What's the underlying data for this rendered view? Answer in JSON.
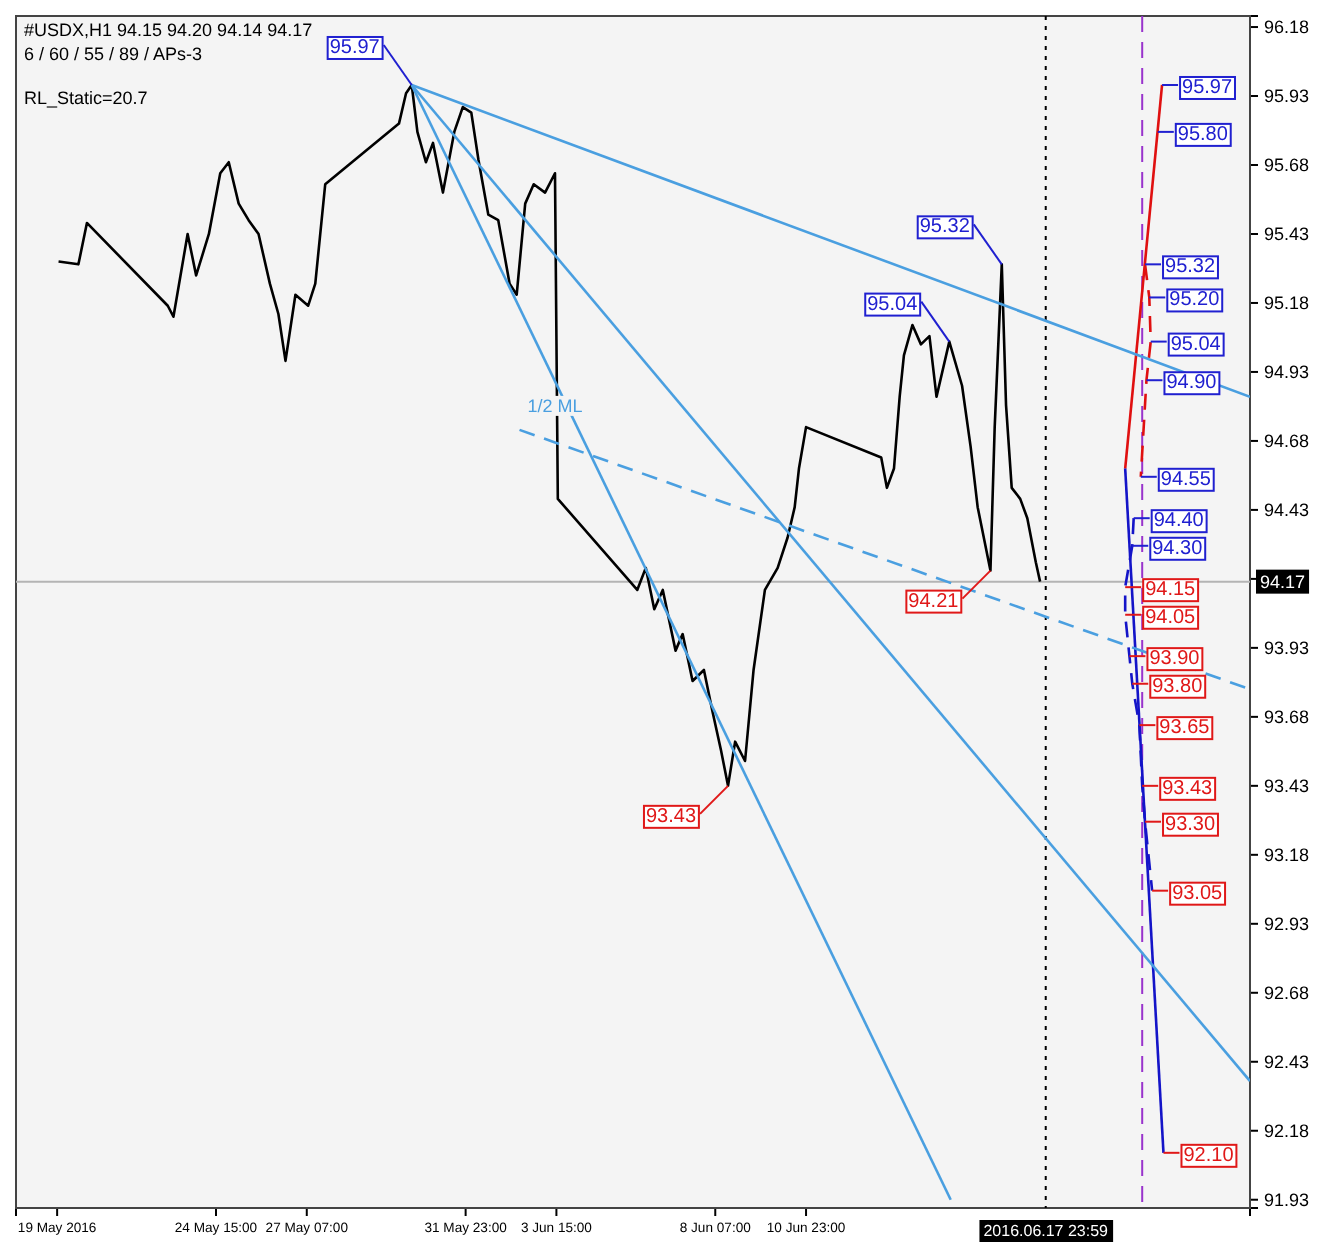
{
  "chart_data": {
    "type": "line",
    "title": "#USDX,H1  94.15 94.20 94.14 94.17",
    "subtitle": "6 / 60 / 55 / 89 / APs-3",
    "xlim": [
      "2016-05-18T18:00",
      "2016-06-24T00:00"
    ],
    "ylim": [
      91.9,
      96.22
    ],
    "xticks": [
      {
        "value": "2016-05-19T23:00",
        "label": "19 May 2016"
      },
      {
        "value": "2016-05-24T15:00",
        "label": "24 May 15:00"
      },
      {
        "value": "2016-05-27T07:00",
        "label": "27 May 07:00"
      },
      {
        "value": "2016-05-31T23:00",
        "label": "31 May 23:00"
      },
      {
        "value": "2016-06-03T15:00",
        "label": "3 Jun 15:00"
      },
      {
        "value": "2016-06-08T07:00",
        "label": "8 Jun 07:00"
      },
      {
        "value": "2016-06-10T23:00",
        "label": "10 Jun 23:00"
      }
    ],
    "yticks": [
      91.93,
      92.18,
      92.43,
      92.68,
      92.93,
      93.18,
      93.43,
      93.68,
      93.93,
      {
        "value": 94.18,
        "label": null
      },
      94.43,
      94.68,
      94.93,
      95.18,
      95.43,
      95.68,
      95.93,
      96.18
    ],
    "series": [
      {
        "color": "#000000",
        "x": [
          "2016-05-20T00:00",
          "2016-05-20T14:00",
          "2016-05-20T20:00",
          "2016-05-23T05:00",
          "2016-05-23T09:00",
          "2016-05-23T19:00",
          "2016-05-24T01:00",
          "2016-05-24T10:00",
          "2016-05-24T18:00",
          "2016-05-25T00:00",
          "2016-05-25T07:00",
          "2016-05-25T14:00",
          "2016-05-25T21:00",
          "2016-05-26T05:00",
          "2016-05-26T11:00",
          "2016-05-26T16:00",
          "2016-05-26T23:00",
          "2016-05-27T08:00",
          "2016-05-27T13:00",
          "2016-05-27T20:00",
          "2016-05-30T00:00",
          "2016-05-30T05:00",
          "2016-05-30T09:00",
          "2016-05-30T13:00",
          "2016-05-30T19:00",
          "2016-05-31T00:00",
          "2016-05-31T07:00",
          "2016-05-31T15:00",
          "2016-05-31T21:00",
          "2016-06-01T03:00",
          "2016-06-01T08:00",
          "2016-06-01T15:00",
          "2016-06-01T22:00",
          "2016-06-02T06:00",
          "2016-06-02T11:00",
          "2016-06-02T17:00",
          "2016-06-02T23:00",
          "2016-06-03T07:00",
          "2016-06-03T14:00",
          "2016-06-03T16:00",
          "2016-06-06T00:00",
          "2016-06-06T06:00",
          "2016-06-06T12:00",
          "2016-06-06T18:00",
          "2016-06-07T03:00",
          "2016-06-07T08:00",
          "2016-06-07T15:00",
          "2016-06-07T23:00",
          "2016-06-08T05:00",
          "2016-06-08T11:00",
          "2016-06-08T16:00",
          "2016-06-08T21:00",
          "2016-06-09T04:00",
          "2016-06-09T10:00",
          "2016-06-09T18:00",
          "2016-06-10T03:00",
          "2016-06-10T10:00",
          "2016-06-10T15:00",
          "2016-06-10T18:00",
          "2016-06-10T23:00",
          "2016-06-13T04:00",
          "2016-06-13T08:00",
          "2016-06-13T13:00",
          "2016-06-13T17:00",
          "2016-06-13T20:00",
          "2016-06-14T02:00",
          "2016-06-14T08:00",
          "2016-06-14T14:00",
          "2016-06-14T19:00",
          "2016-06-15T04:00",
          "2016-06-15T13:00",
          "2016-06-15T19:00",
          "2016-06-16T00:00",
          "2016-06-16T09:00",
          "2016-06-16T12:00",
          "2016-06-16T17:00",
          "2016-06-16T20:00",
          "2016-06-17T00:00",
          "2016-06-17T06:00",
          "2016-06-17T11:00",
          "2016-06-17T17:00",
          "2016-06-17T20:00"
        ],
        "values": [
          95.33,
          95.32,
          95.47,
          95.17,
          95.13,
          95.43,
          95.28,
          95.43,
          95.65,
          95.69,
          95.54,
          95.48,
          95.43,
          95.25,
          95.14,
          94.97,
          95.21,
          95.17,
          95.25,
          95.61,
          95.83,
          95.94,
          95.97,
          95.8,
          95.69,
          95.76,
          95.58,
          95.8,
          95.89,
          95.87,
          95.7,
          95.5,
          95.48,
          95.25,
          95.21,
          95.54,
          95.61,
          95.58,
          95.65,
          94.47,
          94.14,
          94.22,
          94.07,
          94.14,
          93.92,
          93.98,
          93.81,
          93.85,
          93.7,
          93.56,
          93.43,
          93.59,
          93.52,
          93.85,
          94.14,
          94.22,
          94.33,
          94.44,
          94.58,
          94.73,
          94.62,
          94.51,
          94.58,
          94.84,
          94.99,
          95.1,
          95.03,
          95.06,
          94.84,
          95.04,
          94.88,
          94.66,
          94.44,
          94.21,
          94.73,
          95.32,
          94.81,
          94.51,
          94.47,
          94.4,
          94.24,
          94.17
        ]
      },
      {
        "color": "#e01010",
        "x": [
          "2016-06-20T08:00",
          "2016-06-21T10:00"
        ],
        "values": [
          94.58,
          95.97
        ]
      },
      {
        "color": "#1414c8",
        "x": [
          "2016-06-20T08:00",
          "2016-06-21T11:00"
        ],
        "values": [
          94.58,
          92.1
        ]
      },
      {
        "color": "#e01010",
        "line_style": "dashed",
        "x": [
          "2016-06-20T22:00",
          "2016-06-21T01:00",
          "2016-06-21T02:00",
          "2016-06-20T23:00",
          "2016-06-20T19:00"
        ],
        "values": [
          95.32,
          95.2,
          95.04,
          94.9,
          94.55
        ]
      },
      {
        "color": "#1414c8",
        "line_style": "dashed",
        "x": [
          "2016-06-20T14:00",
          "2016-06-20T13:00",
          "2016-06-20T08:00",
          "2016-06-20T08:00",
          "2016-06-20T11:00",
          "2016-06-20T13:00",
          "2016-06-20T18:00",
          "2016-06-20T20:00",
          "2016-06-20T22:00",
          "2016-06-21T03:00"
        ],
        "values": [
          94.4,
          94.3,
          94.15,
          94.05,
          93.9,
          93.8,
          93.65,
          93.43,
          93.3,
          93.05
        ]
      },
      {
        "color": "#4a9fe0",
        "x": [
          "2016-05-30T09:00",
          "2016-06-24T00:00"
        ],
        "values": [
          95.97,
          94.84
        ]
      },
      {
        "color": "#4a9fe0",
        "x": [
          "2016-05-30T09:00",
          "2016-06-24T00:00"
        ],
        "values": [
          95.97,
          92.36
        ]
      },
      {
        "color": "#4a9fe0",
        "x": [
          "2016-05-30T09:00",
          "2016-06-15T05:00"
        ],
        "values": [
          95.97,
          91.93
        ]
      },
      {
        "color": "#4a9fe0",
        "x": [
          "2016-06-02T13:00",
          "2016-06-24T00:00"
        ],
        "values": [
          94.72,
          93.78
        ],
        "line_style": "dashed"
      }
    ],
    "ref_lines": [
      {
        "axis": "y",
        "value": 94.17,
        "label": "94.17",
        "color": "#b4b4b4"
      },
      {
        "axis": "x",
        "value": "2016-06-17T23:59",
        "label": "2016.06.17 23:59",
        "color": "#000000",
        "line_style": "dotted"
      },
      {
        "axis": "x",
        "value": "2016-06-20T20:00",
        "color": "#9933cc",
        "line_style": "dashed"
      }
    ],
    "annotations": [
      "RL_Static=20.7",
      {
        "text": "1/2 ML",
        "x": "2016-06-02T13:00",
        "y": 94.72
      },
      {
        "text": "95.97",
        "x": "2016-05-30T09:00",
        "y": 95.97
      },
      {
        "text": "95.04",
        "x": "2016-06-15T04:00",
        "y": 95.04
      },
      {
        "text": "95.32",
        "x": "2016-06-16T17:00",
        "y": 95.32
      },
      {
        "text": "94.21",
        "x": "2016-06-16T09:00",
        "y": 94.21
      },
      {
        "text": "93.43",
        "x": "2016-06-08T16:00",
        "y": 93.43
      },
      {
        "text": "95.97",
        "x": "2016-06-21T10:00",
        "y": 95.97
      },
      {
        "text": "95.80",
        "x": "2016-06-21T07:00",
        "y": 95.8
      },
      {
        "text": "95.32",
        "x": "2016-06-20T22:00",
        "y": 95.32
      },
      {
        "text": "95.20",
        "x": "2016-06-21T01:00",
        "y": 95.2
      },
      {
        "text": "95.04",
        "x": "2016-06-21T02:00",
        "y": 95.04
      },
      {
        "text": "94.90",
        "x": "2016-06-20T23:00",
        "y": 94.9
      },
      {
        "text": "94.55",
        "x": "2016-06-20T19:00",
        "y": 94.55
      },
      {
        "text": "94.40",
        "x": "2016-06-20T14:00",
        "y": 94.4
      },
      {
        "text": "94.30",
        "x": "2016-06-20T13:00",
        "y": 94.3
      },
      {
        "text": "94.15",
        "x": "2016-06-20T08:00",
        "y": 94.15
      },
      {
        "text": "94.05",
        "x": "2016-06-20T08:00",
        "y": 94.05
      },
      {
        "text": "93.90",
        "x": "2016-06-20T11:00",
        "y": 93.9
      },
      {
        "text": "93.80",
        "x": "2016-06-20T13:00",
        "y": 93.8
      },
      {
        "text": "93.65",
        "x": "2016-06-20T18:00",
        "y": 93.65
      },
      {
        "text": "93.43",
        "x": "2016-06-20T20:00",
        "y": 93.43
      },
      {
        "text": "93.30",
        "x": "2016-06-20T22:00",
        "y": 93.3
      },
      {
        "text": "93.05",
        "x": "2016-06-21T03:00",
        "y": 93.05
      },
      {
        "text": "92.10",
        "x": "2016-06-21T11:00",
        "y": 92.1
      }
    ]
  }
}
